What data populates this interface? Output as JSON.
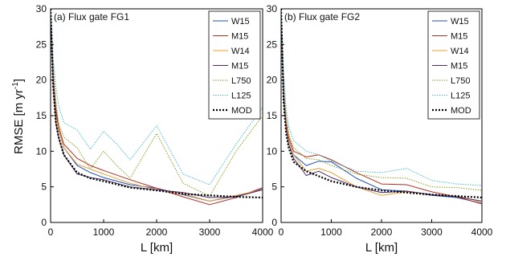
{
  "ylabel": "RMSE [m yr",
  "ylabel_sup": "-1",
  "ylabel_end": "]",
  "chart_data": [
    {
      "type": "line",
      "title": "(a) Flux gate FG1",
      "xlabel": "L [km]",
      "ylabel": "RMSE [m yr-1]",
      "xlim": [
        0,
        4000
      ],
      "ylim": [
        0,
        30
      ],
      "xticks": [
        0,
        1000,
        2000,
        3000,
        4000
      ],
      "yticks": [
        0,
        5,
        10,
        15,
        20,
        25,
        30
      ],
      "grid": false,
      "legend": "top-right",
      "series": [
        {
          "name": "W15",
          "color": "#1f4fbf",
          "dash": "solid",
          "width": 1,
          "x": [
            0,
            50,
            100,
            150,
            250,
            500,
            750,
            1000,
            1500,
            2000,
            2500,
            3000,
            3500,
            4000
          ],
          "y": [
            30,
            20,
            15.5,
            13,
            10.5,
            8,
            7,
            6.3,
            5.3,
            4.8,
            3.9,
            3.0,
            3.7,
            4.7
          ]
        },
        {
          "name": "M15",
          "color": "#b03020",
          "dash": "solid",
          "width": 1,
          "x": [
            0,
            50,
            100,
            150,
            250,
            500,
            750,
            1000,
            1500,
            2000,
            2500,
            3000,
            3500,
            4000
          ],
          "y": [
            30,
            20.5,
            16,
            13.5,
            11,
            9,
            8,
            7.3,
            6.0,
            4.8,
            3.6,
            2.5,
            3.5,
            4.9
          ]
        },
        {
          "name": "W14",
          "color": "#e8a030",
          "dash": "solid",
          "width": 1,
          "x": [
            0,
            50,
            100,
            150,
            250,
            500,
            750,
            1000,
            1500,
            2000,
            2500,
            3000,
            3500,
            4000
          ],
          "y": [
            30,
            20,
            15,
            13,
            10.5,
            8.2,
            7.5,
            6.8,
            5.5,
            4.6,
            4.0,
            3.0,
            3.8,
            4.6
          ]
        },
        {
          "name": "M15",
          "color": "#4a2a68",
          "dash": "solid",
          "width": 1,
          "x": [
            0,
            50,
            100,
            150,
            250,
            500,
            750,
            1000,
            1500,
            2000,
            2500,
            3000,
            3500,
            4000
          ],
          "y": [
            30,
            19,
            14,
            12,
            9.5,
            6.8,
            6.3,
            6.0,
            5.0,
            4.6,
            4.2,
            3.5,
            3.6,
            4.6
          ]
        },
        {
          "name": "L750",
          "color": "#8a9a20",
          "dash": "1.5,1.5",
          "width": 1,
          "x": [
            0,
            50,
            100,
            150,
            250,
            500,
            750,
            1000,
            1250,
            1500,
            2000,
            2500,
            3000,
            3500,
            4000
          ],
          "y": [
            30,
            22,
            17,
            14,
            12,
            10.5,
            7.5,
            10,
            8,
            6.2,
            12.5,
            5.5,
            3.7,
            10,
            15
          ]
        },
        {
          "name": "L125",
          "color": "#4ab8d0",
          "dash": "1.5,1.5",
          "width": 1,
          "x": [
            0,
            50,
            100,
            150,
            250,
            500,
            750,
            1000,
            1250,
            1500,
            2000,
            2500,
            3000,
            3500,
            4000
          ],
          "y": [
            30,
            23,
            19,
            16.5,
            14,
            13,
            10.3,
            12.8,
            11,
            8.8,
            13.6,
            6.8,
            5.3,
            11,
            16.2
          ]
        },
        {
          "name": "MOD",
          "color": "#000000",
          "dash": "2,2",
          "width": 2.2,
          "x": [
            0,
            50,
            100,
            150,
            250,
            500,
            750,
            1000,
            1500,
            2000,
            2500,
            3000,
            3500,
            4000
          ],
          "y": [
            30,
            19,
            14,
            12,
            9.5,
            7.0,
            6.2,
            5.8,
            4.9,
            4.5,
            4.0,
            3.8,
            3.6,
            3.5
          ]
        }
      ]
    },
    {
      "type": "line",
      "title": "(b) Flux gate FG2",
      "xlabel": "L [km]",
      "ylabel": "",
      "xlim": [
        0,
        4000
      ],
      "ylim": [
        0,
        30
      ],
      "xticks": [
        0,
        1000,
        2000,
        3000,
        4000
      ],
      "yticks": [
        0,
        5,
        10,
        15,
        20,
        25,
        30
      ],
      "grid": false,
      "legend": "top-right",
      "series": [
        {
          "name": "W15",
          "color": "#1f4fbf",
          "dash": "solid",
          "width": 1,
          "x": [
            0,
            50,
            100,
            150,
            250,
            500,
            750,
            1000,
            1500,
            2000,
            2500,
            3000,
            3500,
            4000
          ],
          "y": [
            30,
            18,
            13.5,
            11.5,
            9.5,
            8,
            8.6,
            8.5,
            6.2,
            4.6,
            4.4,
            3.8,
            3.5,
            2.7
          ]
        },
        {
          "name": "M15",
          "color": "#b03020",
          "dash": "solid",
          "width": 1,
          "x": [
            0,
            50,
            100,
            150,
            250,
            500,
            750,
            1000,
            1500,
            2000,
            2500,
            3000,
            3500,
            4000
          ],
          "y": [
            30,
            18.5,
            14,
            12,
            10,
            9.2,
            9.5,
            8.8,
            7.0,
            5.4,
            5.3,
            4.3,
            3.6,
            2.6
          ]
        },
        {
          "name": "W14",
          "color": "#e8a030",
          "dash": "solid",
          "width": 1,
          "x": [
            0,
            50,
            100,
            150,
            250,
            500,
            750,
            1000,
            1500,
            2000,
            2500,
            3000,
            3500,
            4000
          ],
          "y": [
            30,
            18,
            13.5,
            11.5,
            9.5,
            7.2,
            7.6,
            7.0,
            5.0,
            3.8,
            4.3,
            3.9,
            3.7,
            2.9
          ]
        },
        {
          "name": "M15",
          "color": "#4a2a68",
          "dash": "solid",
          "width": 1,
          "x": [
            0,
            50,
            100,
            150,
            250,
            500,
            750,
            1000,
            1500,
            2000,
            2500,
            3000,
            3500,
            4000
          ],
          "y": [
            30,
            17.5,
            13,
            11,
            9.0,
            6.6,
            7.2,
            6.3,
            5.0,
            4.2,
            4.4,
            3.9,
            3.6,
            3.0
          ]
        },
        {
          "name": "L750",
          "color": "#8a9a20",
          "dash": "1.5,1.5",
          "width": 1,
          "x": [
            0,
            50,
            100,
            150,
            250,
            500,
            750,
            1000,
            1500,
            2000,
            2500,
            3000,
            3500,
            4000
          ],
          "y": [
            30,
            20,
            15,
            12.5,
            10.5,
            9.0,
            8.8,
            8.0,
            6.8,
            6.3,
            6.2,
            5.0,
            4.9,
            4.5
          ]
        },
        {
          "name": "L125",
          "color": "#4ab8d0",
          "dash": "1.5,1.5",
          "width": 1,
          "x": [
            0,
            50,
            100,
            150,
            250,
            500,
            750,
            1000,
            1500,
            2000,
            2500,
            3000,
            3500,
            4000
          ],
          "y": [
            30,
            21,
            16,
            13.5,
            11.5,
            10,
            9.5,
            8.6,
            7.2,
            7.0,
            7.6,
            5.9,
            5.4,
            5.2
          ]
        },
        {
          "name": "MOD",
          "color": "#000000",
          "dash": "2,2",
          "width": 2.2,
          "x": [
            0,
            50,
            100,
            150,
            250,
            500,
            750,
            1000,
            1500,
            2000,
            2500,
            3000,
            3500,
            4000
          ],
          "y": [
            30,
            17,
            12.5,
            10.5,
            8.5,
            7.2,
            6.5,
            5.8,
            5.0,
            4.5,
            4.2,
            3.9,
            3.7,
            3.5
          ]
        }
      ]
    }
  ]
}
